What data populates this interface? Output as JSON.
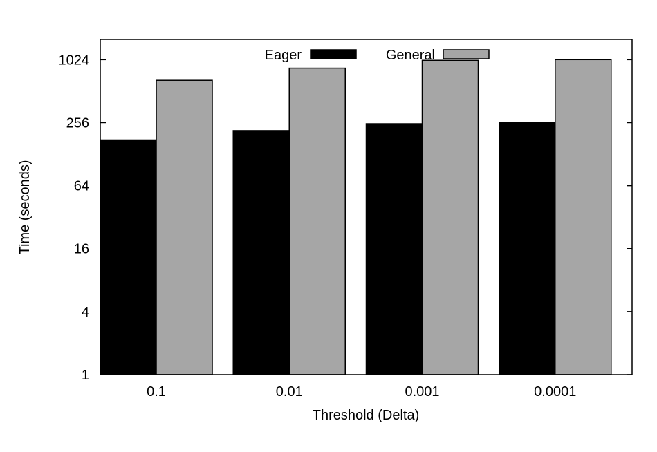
{
  "chart_data": {
    "type": "bar",
    "scale": "log2",
    "xlabel": "Threshold (Delta)",
    "ylabel": "Time (seconds)",
    "categories": [
      "0.1",
      "0.01",
      "0.001",
      "0.0001"
    ],
    "ylim": [
      1,
      1600
    ],
    "yticks": [
      1,
      4,
      16,
      64,
      256,
      1024
    ],
    "ytick_labels": [
      "1",
      "4",
      "16",
      "64",
      "256",
      "1024"
    ],
    "series": [
      {
        "name": "Eager",
        "values": [
          175,
          215,
          250,
          255
        ],
        "color": "#000000"
      },
      {
        "name": "General",
        "values": [
          650,
          850,
          1010,
          1025
        ],
        "color": "#a6a6a6"
      }
    ],
    "legend_position": "top-center",
    "grid": false
  }
}
